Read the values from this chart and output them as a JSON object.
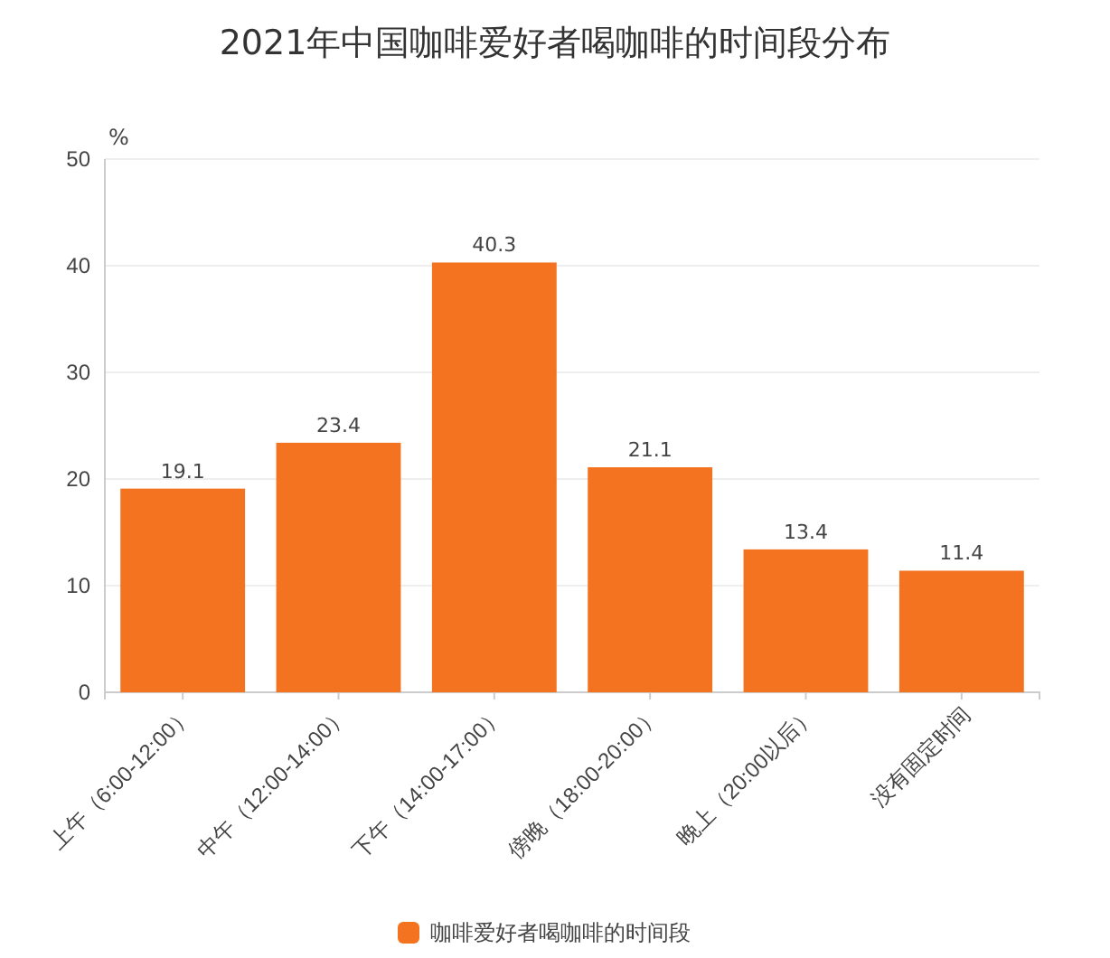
{
  "chart_data": {
    "type": "bar",
    "title": "2021年中国咖啡爱好者喝咖啡的时间段分布",
    "ylabel": "%",
    "categories": [
      "上午（6:00-12:00）",
      "中午（12:00-14:00）",
      "下午（14:00-17:00）",
      "傍晚（18:00-20:00）",
      "晚上（20:00以后）",
      "没有固定时间"
    ],
    "series": [
      {
        "name": "咖啡爱好者喝咖啡的时间段",
        "color": "#f47321",
        "values": [
          19.1,
          23.4,
          40.3,
          21.1,
          13.4,
          11.4
        ]
      }
    ],
    "ylim": [
      0,
      50
    ],
    "yticks": [
      0,
      10,
      20,
      30,
      40,
      50
    ],
    "grid": "y",
    "legend": "bottom",
    "data_labels": true
  }
}
